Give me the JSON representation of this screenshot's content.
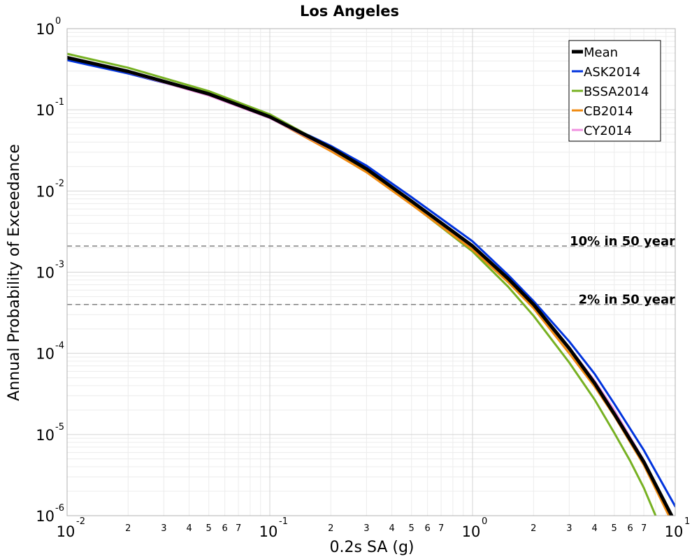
{
  "chart_data": {
    "type": "line",
    "title": "Los Angeles",
    "xlabel": "0.2s SA (g)",
    "ylabel": "Annual Probability of Exceedance",
    "x_scale": "log",
    "y_scale": "log",
    "xlim": [
      0.01,
      10
    ],
    "ylim": [
      1e-06,
      1
    ],
    "grid": true,
    "legend_position": "top-right",
    "x_major_ticks": [
      {
        "value": 0.01,
        "base": "10",
        "exp": "-2"
      },
      {
        "value": 0.1,
        "base": "10",
        "exp": "-1"
      },
      {
        "value": 1,
        "base": "10",
        "exp": "0"
      },
      {
        "value": 10,
        "base": "10",
        "exp": "1"
      }
    ],
    "x_minor_labels": [
      "2",
      "3",
      "4",
      "5",
      "6",
      "7"
    ],
    "y_major_ticks": [
      {
        "value": 1,
        "base": "10",
        "exp": "0"
      },
      {
        "value": 0.1,
        "base": "10",
        "exp": "-1"
      },
      {
        "value": 0.01,
        "base": "10",
        "exp": "-2"
      },
      {
        "value": 0.001,
        "base": "10",
        "exp": "-3"
      },
      {
        "value": 0.0001,
        "base": "10",
        "exp": "-4"
      },
      {
        "value": 1e-05,
        "base": "10",
        "exp": "-5"
      },
      {
        "value": 1e-06,
        "base": "10",
        "exp": "-6"
      }
    ],
    "reference_lines": [
      {
        "label": "10% in 50 year",
        "y": 0.0021,
        "color": "#808080"
      },
      {
        "label": "2% in 50 year",
        "y": 0.0004,
        "color": "#808080"
      }
    ],
    "series": [
      {
        "name": "ASK2014",
        "color": "#0033dd",
        "width": 3,
        "x": [
          0.01,
          0.02,
          0.05,
          0.1,
          0.2,
          0.3,
          0.5,
          1.0,
          1.5,
          2.0,
          3.0,
          4.0,
          5.0,
          7.0,
          10.0
        ],
        "y": [
          0.41,
          0.28,
          0.155,
          0.082,
          0.036,
          0.0205,
          0.0084,
          0.0024,
          0.00092,
          0.00044,
          0.00014,
          5.6e-05,
          2.4e-05,
          6.4e-06,
          1.3e-06
        ]
      },
      {
        "name": "BSSA2014",
        "color": "#77b122",
        "width": 3,
        "x": [
          0.01,
          0.02,
          0.05,
          0.1,
          0.2,
          0.3,
          0.5,
          1.0,
          1.5,
          2.0,
          3.0,
          4.0,
          5.0,
          6.0,
          7.0,
          8.0
        ],
        "y": [
          0.49,
          0.33,
          0.17,
          0.088,
          0.034,
          0.018,
          0.0069,
          0.0018,
          0.00066,
          0.00029,
          7.7e-05,
          2.7e-05,
          1.05e-05,
          4.7e-06,
          2.2e-06,
          1e-06
        ]
      },
      {
        "name": "CB2014",
        "color": "#f08a10",
        "width": 3,
        "x": [
          0.01,
          0.02,
          0.05,
          0.1,
          0.2,
          0.3,
          0.5,
          1.0,
          1.5,
          2.0,
          3.0,
          4.0,
          5.0,
          7.0,
          9.3
        ],
        "y": [
          0.44,
          0.295,
          0.155,
          0.08,
          0.031,
          0.017,
          0.0068,
          0.0019,
          0.00075,
          0.00036,
          0.0001,
          3.9e-05,
          1.7e-05,
          4.2e-06,
          1e-06
        ]
      },
      {
        "name": "CY2014",
        "color": "#f090e0",
        "width": 3,
        "x": [
          0.01,
          0.02,
          0.05,
          0.1,
          0.2,
          0.3,
          0.5,
          1.0,
          1.5,
          2.0,
          3.0,
          4.0,
          5.0,
          7.0,
          9.6
        ],
        "y": [
          0.44,
          0.29,
          0.15,
          0.079,
          0.033,
          0.0185,
          0.0075,
          0.0021,
          0.00083,
          0.0004,
          0.000118,
          4.6e-05,
          2e-05,
          4.8e-06,
          1e-06
        ]
      },
      {
        "name": "Mean",
        "color": "#000000",
        "width": 5,
        "x": [
          0.01,
          0.02,
          0.05,
          0.1,
          0.2,
          0.3,
          0.5,
          1.0,
          1.5,
          2.0,
          3.0,
          4.0,
          5.0,
          7.0,
          9.6
        ],
        "y": [
          0.44,
          0.297,
          0.157,
          0.082,
          0.034,
          0.0187,
          0.0075,
          0.0021,
          0.00083,
          0.0004,
          0.000115,
          4.3e-05,
          1.8e-05,
          4.6e-06,
          1e-06
        ]
      }
    ],
    "legend_order": [
      "Mean",
      "ASK2014",
      "BSSA2014",
      "CB2014",
      "CY2014"
    ]
  }
}
